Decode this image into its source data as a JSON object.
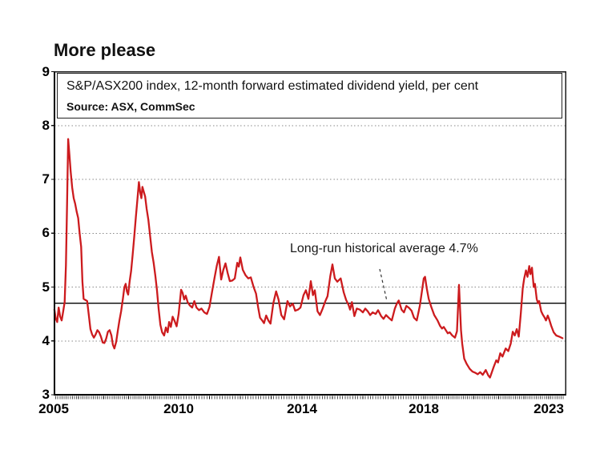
{
  "chart_data": {
    "type": "line",
    "title": "More please",
    "subtitle": "S&P/ASX200 index, 12-month forward estimated dividend yield, per cent",
    "source": "Source: ASX, CommSec",
    "ylim": [
      3,
      9
    ],
    "yticks": [
      3,
      4,
      5,
      6,
      7,
      8,
      9
    ],
    "gridlines": {
      "style": "dotted",
      "at": [
        4,
        5,
        6,
        7,
        8
      ],
      "color": "#888888"
    },
    "xtick_years": [
      2005,
      2010,
      2014,
      2018,
      2023
    ],
    "legend_position": "none",
    "line_color": "#cc1b1e",
    "average_line": {
      "value": 4.7,
      "label": "Long-run historical average 4.7%",
      "style": "solid-black"
    },
    "series": [
      {
        "name": "S&P/ASX200 12-month forward estimated dividend yield (per cent)",
        "points": [
          [
            2005.03,
            4.58
          ],
          [
            2005.08,
            4.42
          ],
          [
            2005.14,
            4.35
          ],
          [
            2005.2,
            4.62
          ],
          [
            2005.26,
            4.45
          ],
          [
            2005.32,
            4.38
          ],
          [
            2005.38,
            4.55
          ],
          [
            2005.44,
            4.72
          ],
          [
            2005.49,
            5.4
          ],
          [
            2005.54,
            6.6
          ],
          [
            2005.58,
            7.75
          ],
          [
            2005.63,
            7.45
          ],
          [
            2005.68,
            7.15
          ],
          [
            2005.74,
            6.85
          ],
          [
            2005.8,
            6.65
          ],
          [
            2005.86,
            6.55
          ],
          [
            2005.92,
            6.4
          ],
          [
            2005.98,
            6.28
          ],
          [
            2006.04,
            6.0
          ],
          [
            2006.1,
            5.75
          ],
          [
            2006.15,
            5.1
          ],
          [
            2006.2,
            4.78
          ],
          [
            2006.27,
            4.76
          ],
          [
            2006.34,
            4.74
          ],
          [
            2006.4,
            4.5
          ],
          [
            2006.47,
            4.22
          ],
          [
            2006.54,
            4.12
          ],
          [
            2006.61,
            4.06
          ],
          [
            2006.68,
            4.12
          ],
          [
            2006.75,
            4.2
          ],
          [
            2006.82,
            4.16
          ],
          [
            2006.89,
            4.08
          ],
          [
            2006.96,
            3.97
          ],
          [
            2007.03,
            3.96
          ],
          [
            2007.1,
            4.04
          ],
          [
            2007.17,
            4.17
          ],
          [
            2007.24,
            4.2
          ],
          [
            2007.31,
            4.1
          ],
          [
            2007.37,
            3.93
          ],
          [
            2007.43,
            3.86
          ],
          [
            2007.5,
            3.98
          ],
          [
            2007.57,
            4.2
          ],
          [
            2007.63,
            4.38
          ],
          [
            2007.7,
            4.55
          ],
          [
            2007.77,
            4.78
          ],
          [
            2007.83,
            5.0
          ],
          [
            2007.88,
            5.06
          ],
          [
            2007.93,
            4.92
          ],
          [
            2007.98,
            4.86
          ],
          [
            2008.04,
            5.1
          ],
          [
            2008.1,
            5.3
          ],
          [
            2008.16,
            5.6
          ],
          [
            2008.22,
            5.92
          ],
          [
            2008.29,
            6.3
          ],
          [
            2008.35,
            6.62
          ],
          [
            2008.41,
            6.95
          ],
          [
            2008.46,
            6.76
          ],
          [
            2008.51,
            6.65
          ],
          [
            2008.55,
            6.86
          ],
          [
            2008.6,
            6.78
          ],
          [
            2008.66,
            6.68
          ],
          [
            2008.72,
            6.45
          ],
          [
            2008.79,
            6.25
          ],
          [
            2008.86,
            5.95
          ],
          [
            2008.93,
            5.65
          ],
          [
            2009.0,
            5.45
          ],
          [
            2009.07,
            5.2
          ],
          [
            2009.13,
            4.95
          ],
          [
            2009.2,
            4.6
          ],
          [
            2009.27,
            4.3
          ],
          [
            2009.34,
            4.16
          ],
          [
            2009.42,
            4.1
          ],
          [
            2009.49,
            4.25
          ],
          [
            2009.56,
            4.16
          ],
          [
            2009.62,
            4.35
          ],
          [
            2009.69,
            4.26
          ],
          [
            2009.76,
            4.45
          ],
          [
            2009.83,
            4.38
          ],
          [
            2009.92,
            4.27
          ],
          [
            2010.0,
            4.5
          ],
          [
            2010.08,
            4.95
          ],
          [
            2010.13,
            4.89
          ],
          [
            2010.18,
            4.77
          ],
          [
            2010.23,
            4.84
          ],
          [
            2010.29,
            4.72
          ],
          [
            2010.36,
            4.66
          ],
          [
            2010.44,
            4.62
          ],
          [
            2010.51,
            4.74
          ],
          [
            2010.58,
            4.62
          ],
          [
            2010.66,
            4.57
          ],
          [
            2010.74,
            4.6
          ],
          [
            2010.83,
            4.53
          ],
          [
            2010.92,
            4.5
          ],
          [
            2011.0,
            4.63
          ],
          [
            2011.08,
            4.9
          ],
          [
            2011.16,
            5.16
          ],
          [
            2011.24,
            5.4
          ],
          [
            2011.31,
            5.56
          ],
          [
            2011.38,
            5.14
          ],
          [
            2011.45,
            5.32
          ],
          [
            2011.52,
            5.44
          ],
          [
            2011.59,
            5.26
          ],
          [
            2011.66,
            5.11
          ],
          [
            2011.74,
            5.12
          ],
          [
            2011.82,
            5.16
          ],
          [
            2011.9,
            5.45
          ],
          [
            2011.95,
            5.38
          ],
          [
            2012.0,
            5.55
          ],
          [
            2012.08,
            5.32
          ],
          [
            2012.17,
            5.22
          ],
          [
            2012.26,
            5.16
          ],
          [
            2012.34,
            5.18
          ],
          [
            2012.43,
            5.0
          ],
          [
            2012.51,
            4.88
          ],
          [
            2012.58,
            4.62
          ],
          [
            2012.64,
            4.43
          ],
          [
            2012.71,
            4.38
          ],
          [
            2012.77,
            4.33
          ],
          [
            2012.84,
            4.47
          ],
          [
            2012.91,
            4.38
          ],
          [
            2012.98,
            4.32
          ],
          [
            2013.07,
            4.7
          ],
          [
            2013.16,
            4.92
          ],
          [
            2013.24,
            4.77
          ],
          [
            2013.33,
            4.48
          ],
          [
            2013.42,
            4.4
          ],
          [
            2013.53,
            4.74
          ],
          [
            2013.61,
            4.64
          ],
          [
            2013.7,
            4.69
          ],
          [
            2013.78,
            4.56
          ],
          [
            2013.87,
            4.58
          ],
          [
            2013.95,
            4.62
          ],
          [
            2014.05,
            4.85
          ],
          [
            2014.13,
            4.94
          ],
          [
            2014.21,
            4.78
          ],
          [
            2014.29,
            5.11
          ],
          [
            2014.36,
            4.85
          ],
          [
            2014.42,
            4.94
          ],
          [
            2014.51,
            4.55
          ],
          [
            2014.59,
            4.48
          ],
          [
            2014.68,
            4.6
          ],
          [
            2014.76,
            4.73
          ],
          [
            2014.84,
            4.83
          ],
          [
            2014.93,
            5.2
          ],
          [
            2015.0,
            5.42
          ],
          [
            2015.08,
            5.16
          ],
          [
            2015.16,
            5.1
          ],
          [
            2015.27,
            5.16
          ],
          [
            2015.37,
            4.9
          ],
          [
            2015.45,
            4.76
          ],
          [
            2015.53,
            4.67
          ],
          [
            2015.58,
            4.58
          ],
          [
            2015.64,
            4.72
          ],
          [
            2015.72,
            4.46
          ],
          [
            2015.8,
            4.6
          ],
          [
            2015.9,
            4.58
          ],
          [
            2016.0,
            4.53
          ],
          [
            2016.08,
            4.6
          ],
          [
            2016.16,
            4.55
          ],
          [
            2016.24,
            4.48
          ],
          [
            2016.32,
            4.53
          ],
          [
            2016.42,
            4.5
          ],
          [
            2016.5,
            4.57
          ],
          [
            2016.6,
            4.46
          ],
          [
            2016.68,
            4.41
          ],
          [
            2016.76,
            4.48
          ],
          [
            2016.85,
            4.43
          ],
          [
            2016.95,
            4.38
          ],
          [
            2017.05,
            4.6
          ],
          [
            2017.12,
            4.7
          ],
          [
            2017.18,
            4.75
          ],
          [
            2017.27,
            4.58
          ],
          [
            2017.35,
            4.53
          ],
          [
            2017.43,
            4.65
          ],
          [
            2017.52,
            4.61
          ],
          [
            2017.6,
            4.56
          ],
          [
            2017.68,
            4.43
          ],
          [
            2017.77,
            4.38
          ],
          [
            2017.87,
            4.65
          ],
          [
            2017.94,
            4.92
          ],
          [
            2018.0,
            5.16
          ],
          [
            2018.05,
            5.19
          ],
          [
            2018.12,
            4.98
          ],
          [
            2018.2,
            4.78
          ],
          [
            2018.3,
            4.63
          ],
          [
            2018.42,
            4.48
          ],
          [
            2018.55,
            4.38
          ],
          [
            2018.65,
            4.28
          ],
          [
            2018.73,
            4.23
          ],
          [
            2018.8,
            4.26
          ],
          [
            2018.88,
            4.2
          ],
          [
            2018.96,
            4.14
          ],
          [
            2019.04,
            4.16
          ],
          [
            2019.14,
            4.1
          ],
          [
            2019.25,
            4.06
          ],
          [
            2019.33,
            4.18
          ],
          [
            2019.41,
            5.04
          ],
          [
            2019.49,
            4.2
          ],
          [
            2019.54,
            3.95
          ],
          [
            2019.62,
            3.67
          ],
          [
            2019.72,
            3.57
          ],
          [
            2019.84,
            3.48
          ],
          [
            2019.95,
            3.43
          ],
          [
            2020.05,
            3.41
          ],
          [
            2020.16,
            3.38
          ],
          [
            2020.26,
            3.42
          ],
          [
            2020.36,
            3.37
          ],
          [
            2020.48,
            3.46
          ],
          [
            2020.58,
            3.36
          ],
          [
            2020.65,
            3.32
          ],
          [
            2020.8,
            3.52
          ],
          [
            2020.9,
            3.64
          ],
          [
            2020.97,
            3.6
          ],
          [
            2021.06,
            3.77
          ],
          [
            2021.15,
            3.71
          ],
          [
            2021.28,
            3.86
          ],
          [
            2021.38,
            3.81
          ],
          [
            2021.48,
            3.95
          ],
          [
            2021.56,
            4.17
          ],
          [
            2021.64,
            4.1
          ],
          [
            2021.72,
            4.22
          ],
          [
            2021.8,
            4.08
          ],
          [
            2021.88,
            4.5
          ],
          [
            2021.96,
            4.98
          ],
          [
            2022.02,
            5.16
          ],
          [
            2022.09,
            5.31
          ],
          [
            2022.15,
            5.19
          ],
          [
            2022.22,
            5.39
          ],
          [
            2022.27,
            5.24
          ],
          [
            2022.33,
            5.36
          ],
          [
            2022.4,
            5.0
          ],
          [
            2022.45,
            5.06
          ],
          [
            2022.52,
            4.78
          ],
          [
            2022.57,
            4.7
          ],
          [
            2022.62,
            4.74
          ],
          [
            2022.7,
            4.55
          ],
          [
            2022.76,
            4.49
          ],
          [
            2022.83,
            4.44
          ],
          [
            2022.89,
            4.38
          ],
          [
            2022.96,
            4.47
          ],
          [
            2023.02,
            4.4
          ],
          [
            2023.1,
            4.28
          ],
          [
            2023.2,
            4.16
          ],
          [
            2023.3,
            4.1
          ],
          [
            2023.42,
            4.08
          ],
          [
            2023.55,
            4.05
          ]
        ]
      }
    ]
  }
}
